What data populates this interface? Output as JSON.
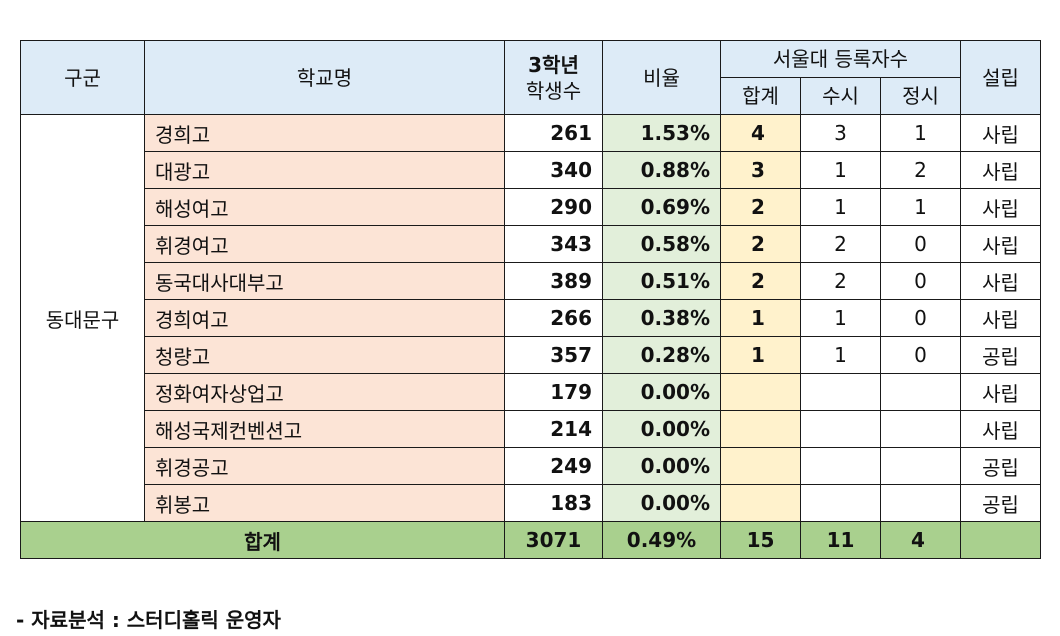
{
  "headers": {
    "district": "구군",
    "school": "학교명",
    "students_line1": "3학년",
    "students_line2": "학생수",
    "ratio": "비율",
    "snu_group": "서울대 등록자수",
    "total": "합계",
    "early": "수시",
    "regular": "정시",
    "founding": "설립"
  },
  "district_name": "동대문구",
  "rows": [
    {
      "name": "경희고",
      "students": "261",
      "ratio": "1.53%",
      "total": "4",
      "early": "3",
      "regular": "1",
      "type": "사립"
    },
    {
      "name": "대광고",
      "students": "340",
      "ratio": "0.88%",
      "total": "3",
      "early": "1",
      "regular": "2",
      "type": "사립"
    },
    {
      "name": "해성여고",
      "students": "290",
      "ratio": "0.69%",
      "total": "2",
      "early": "1",
      "regular": "1",
      "type": "사립"
    },
    {
      "name": "휘경여고",
      "students": "343",
      "ratio": "0.58%",
      "total": "2",
      "early": "2",
      "regular": "0",
      "type": "사립"
    },
    {
      "name": "동국대사대부고",
      "students": "389",
      "ratio": "0.51%",
      "total": "2",
      "early": "2",
      "regular": "0",
      "type": "사립"
    },
    {
      "name": "경희여고",
      "students": "266",
      "ratio": "0.38%",
      "total": "1",
      "early": "1",
      "regular": "0",
      "type": "사립"
    },
    {
      "name": "청량고",
      "students": "357",
      "ratio": "0.28%",
      "total": "1",
      "early": "1",
      "regular": "0",
      "type": "공립"
    },
    {
      "name": "정화여자상업고",
      "students": "179",
      "ratio": "0.00%",
      "total": "",
      "early": "",
      "regular": "",
      "type": "사립"
    },
    {
      "name": "해성국제컨벤션고",
      "students": "214",
      "ratio": "0.00%",
      "total": "",
      "early": "",
      "regular": "",
      "type": "사립"
    },
    {
      "name": "휘경공고",
      "students": "249",
      "ratio": "0.00%",
      "total": "",
      "early": "",
      "regular": "",
      "type": "공립"
    },
    {
      "name": "휘봉고",
      "students": "183",
      "ratio": "0.00%",
      "total": "",
      "early": "",
      "regular": "",
      "type": "공립"
    }
  ],
  "totals": {
    "label": "합계",
    "students": "3071",
    "ratio": "0.49%",
    "total": "15",
    "early": "11",
    "regular": "4",
    "type": ""
  },
  "footnote": "- 자료분석 : 스터디홀릭 운영자",
  "colors": {
    "header_bg": "#ddebf7",
    "name_bg": "#fce4d6",
    "ratio_bg": "#e2efda",
    "sum_bg": "#fff2cc",
    "total_row_bg": "#a9d08e"
  }
}
